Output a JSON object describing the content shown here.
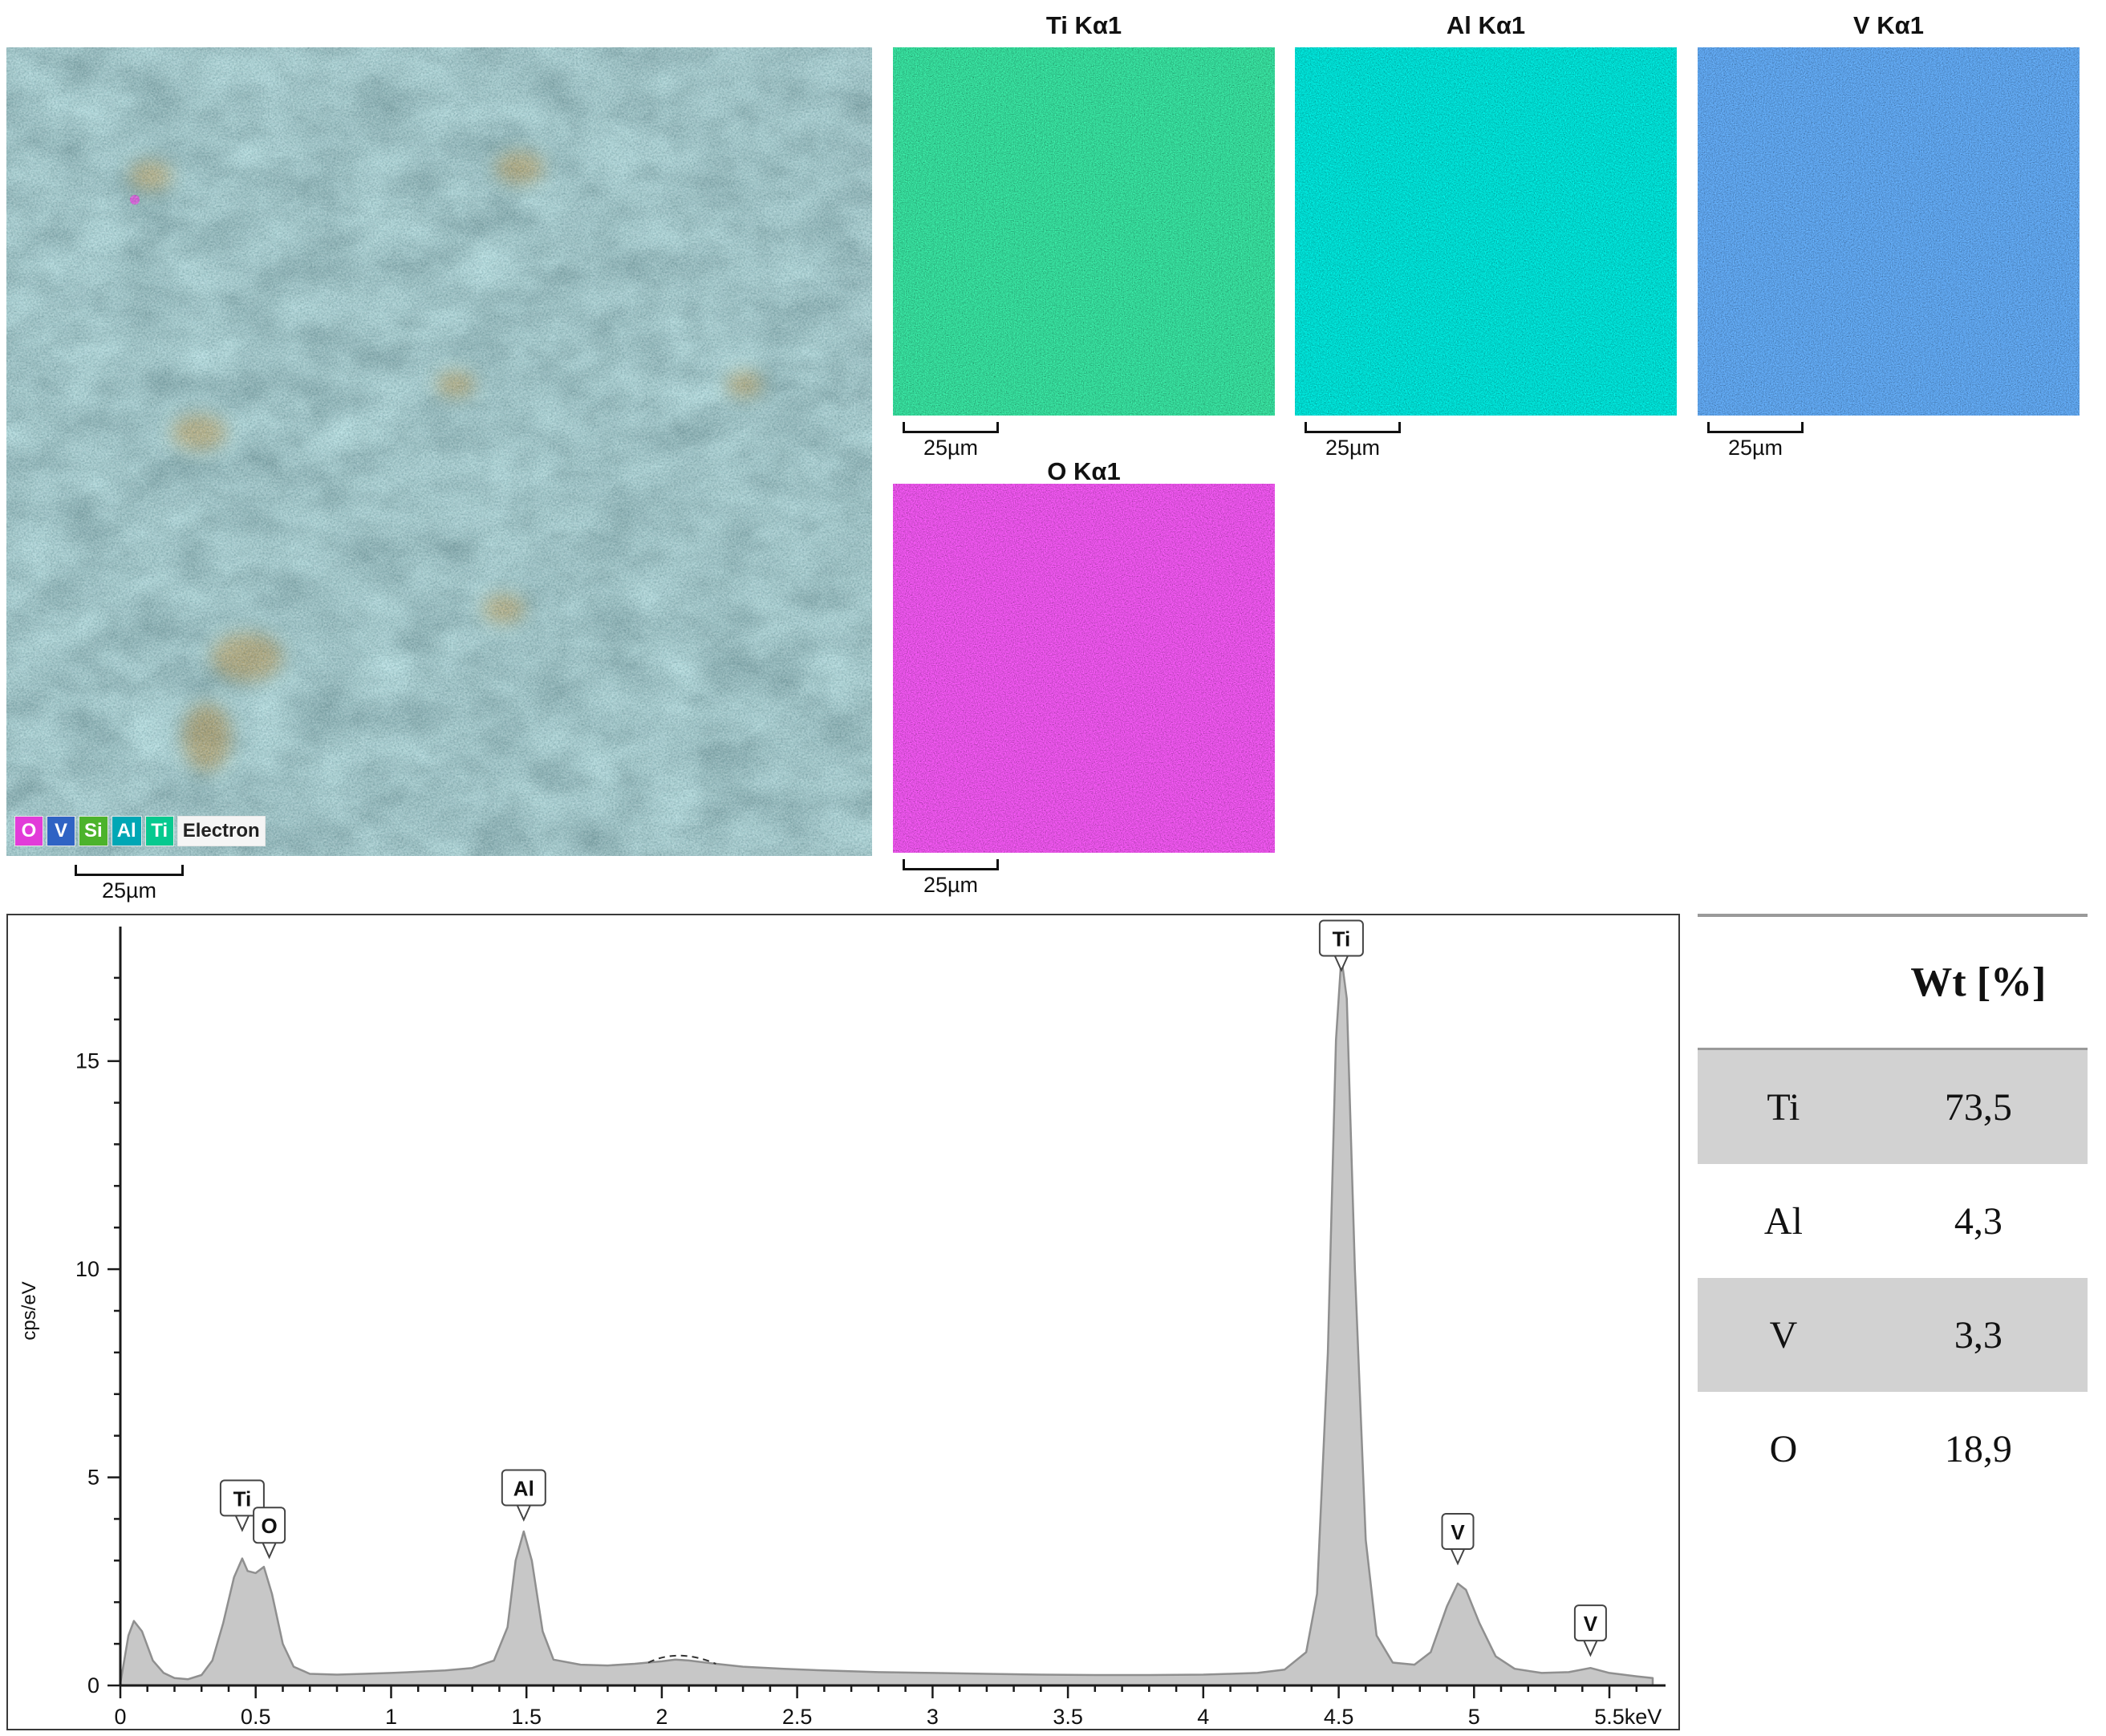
{
  "figure": {
    "background": "#ffffff"
  },
  "electron_image": {
    "name": "Electron image with element overlay",
    "scale_label": "25µm",
    "base_color": "#3f6d72",
    "legend": [
      {
        "label": "O",
        "color": "#e23bd9",
        "text_color": "#ffffff"
      },
      {
        "label": "V",
        "color": "#2f63c4",
        "text_color": "#ffffff"
      },
      {
        "label": "Si",
        "color": "#4cb32b",
        "text_color": "#ffffff"
      },
      {
        "label": "Al",
        "color": "#00a7b5",
        "text_color": "#ffffff"
      },
      {
        "label": "Ti",
        "color": "#06c98f",
        "text_color": "#ffffff"
      },
      {
        "label": "Electron",
        "color": "#f5f5f5",
        "text_color": "#222222"
      }
    ]
  },
  "maps": [
    {
      "title": "Ti Kα1",
      "color": "#09a84e",
      "scale_label": "25µm"
    },
    {
      "title": "Al Kα1",
      "color": "#00ae9d",
      "scale_label": "25µm"
    },
    {
      "title": "V Kα1",
      "color": "#1b59c8",
      "scale_label": "25µm"
    },
    {
      "title": "O Kα1",
      "color": "#c215c2",
      "scale_label": "25µm"
    }
  ],
  "table": {
    "header": "Wt [%]",
    "rows": [
      {
        "element": "Ti",
        "value": "73,5",
        "shaded": true
      },
      {
        "element": "Al",
        "value": "4,3",
        "shaded": false
      },
      {
        "element": "V",
        "value": "3,3",
        "shaded": true
      },
      {
        "element": "O",
        "value": "18,9",
        "shaded": false
      }
    ]
  },
  "chart_data": {
    "type": "area",
    "title": "EDS spectrum",
    "ylabel": "cps/eV",
    "x_unit": "keV",
    "xlim": [
      0,
      5.66
    ],
    "ylim": [
      0,
      18
    ],
    "x_major_ticks": [
      0,
      0.5,
      1,
      1.5,
      2,
      2.5,
      3,
      3.5,
      4,
      4.5,
      5,
      5.5
    ],
    "y_major_ticks": [
      0,
      5,
      10,
      15
    ],
    "grid": false,
    "legend_position": "none",
    "fill_color": "#c7c7c7",
    "line_color": "#8f8f8f",
    "x": [
      0,
      0.03,
      0.05,
      0.08,
      0.12,
      0.16,
      0.2,
      0.25,
      0.3,
      0.34,
      0.38,
      0.42,
      0.45,
      0.47,
      0.5,
      0.53,
      0.56,
      0.6,
      0.64,
      0.7,
      0.8,
      0.9,
      1,
      1.1,
      1.2,
      1.3,
      1.38,
      1.43,
      1.46,
      1.49,
      1.52,
      1.56,
      1.6,
      1.7,
      1.8,
      1.9,
      2,
      2.05,
      2.1,
      2.2,
      2.3,
      2.45,
      2.6,
      2.8,
      3,
      3.2,
      3.4,
      3.6,
      3.8,
      4,
      4.1,
      4.2,
      4.3,
      4.38,
      4.42,
      4.46,
      4.49,
      4.51,
      4.53,
      4.56,
      4.6,
      4.64,
      4.7,
      4.78,
      4.84,
      4.9,
      4.94,
      4.97,
      5.02,
      5.08,
      5.15,
      5.25,
      5.35,
      5.43,
      5.5,
      5.6,
      5.66
    ],
    "y": [
      0.05,
      1.2,
      1.55,
      1.3,
      0.6,
      0.3,
      0.18,
      0.15,
      0.25,
      0.6,
      1.5,
      2.6,
      3.05,
      2.75,
      2.7,
      2.85,
      2.2,
      1.0,
      0.45,
      0.28,
      0.26,
      0.28,
      0.3,
      0.33,
      0.36,
      0.42,
      0.6,
      1.4,
      3.0,
      3.7,
      3.0,
      1.3,
      0.62,
      0.5,
      0.48,
      0.52,
      0.58,
      0.62,
      0.6,
      0.52,
      0.45,
      0.4,
      0.36,
      0.32,
      0.3,
      0.28,
      0.26,
      0.25,
      0.25,
      0.26,
      0.28,
      0.3,
      0.38,
      0.8,
      2.2,
      8,
      15.5,
      17.5,
      16.5,
      10,
      3.5,
      1.2,
      0.55,
      0.5,
      0.8,
      1.9,
      2.45,
      2.3,
      1.5,
      0.7,
      0.4,
      0.3,
      0.32,
      0.42,
      0.3,
      0.22,
      0.18
    ],
    "peak_labels": [
      {
        "label": "Ti",
        "x": 0.45,
        "label_y": 4.0
      },
      {
        "label": "O",
        "x": 0.55,
        "label_y": 3.35
      },
      {
        "label": "Al",
        "x": 1.49,
        "label_y": 4.25
      },
      {
        "label": "Ti",
        "x": 4.51,
        "label_y": 17.45
      },
      {
        "label": "V",
        "x": 4.94,
        "label_y": 3.2
      },
      {
        "label": "V",
        "x": 5.43,
        "label_y": 1.0
      }
    ],
    "dashed_marker": {
      "x_start": 1.95,
      "y_start": 0.55,
      "x_peak": 2.06,
      "y_peak": 0.9,
      "x_end": 2.2,
      "y_end": 0.52
    }
  }
}
